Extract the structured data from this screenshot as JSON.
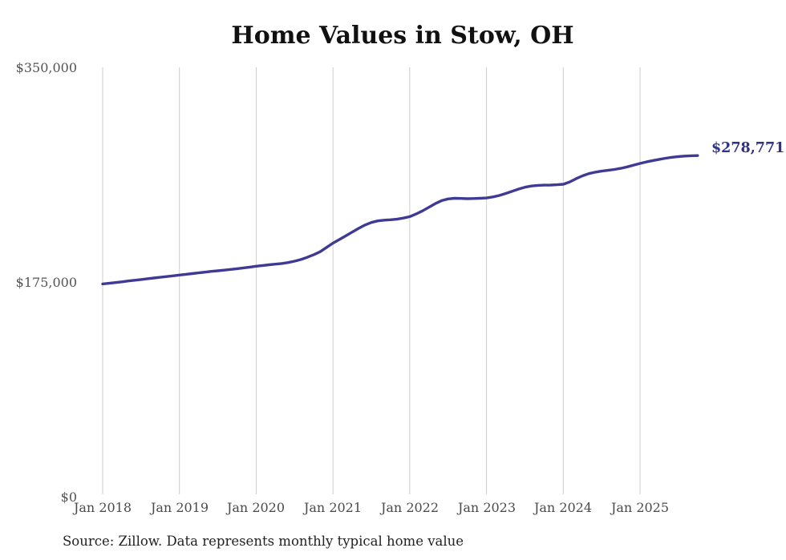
{
  "title": "Home Values in Stow, OH",
  "source": "Source: Zillow. Data represents monthly typical home value",
  "colors": {
    "line": "#3f3b94",
    "end_label": "#31318c",
    "gridline": "#cccccc",
    "axis_text": "#4f4f4f",
    "title_text": "#111111",
    "source_text": "#222222",
    "background": "#ffffff"
  },
  "chart_data": {
    "type": "line",
    "title": "Home Values in Stow, OH",
    "xlabel": "",
    "ylabel": "",
    "x_start": "2018-01",
    "x_end": "2025-10",
    "x_interval": "monthly",
    "x_tick_labels": [
      "Jan 2018",
      "Jan 2019",
      "Jan 2020",
      "Jan 2021",
      "Jan 2022",
      "Jan 2023",
      "Jan 2024",
      "Jan 2025"
    ],
    "y_tick_labels": [
      "$350,000",
      "$175,000",
      "$0"
    ],
    "ylim": [
      0,
      350000
    ],
    "grid": "vertical-only",
    "legend": "none",
    "end_label": "$278,771",
    "end_value": 278771,
    "series": [
      {
        "name": "Typical home value",
        "values": [
          174300,
          174800,
          175400,
          176000,
          176700,
          177300,
          177900,
          178500,
          179100,
          179700,
          180300,
          180900,
          181500,
          182100,
          182700,
          183300,
          183900,
          184500,
          185000,
          185500,
          186100,
          186700,
          187300,
          188000,
          188700,
          189300,
          189900,
          190400,
          190900,
          191700,
          192800,
          194200,
          196000,
          198100,
          200500,
          204000,
          207500,
          210400,
          213400,
          216500,
          219500,
          222200,
          224300,
          225600,
          226200,
          226500,
          227000,
          227900,
          229100,
          231200,
          233800,
          236700,
          239700,
          242100,
          243500,
          244000,
          243900,
          243700,
          243800,
          244000,
          244300,
          245100,
          246300,
          247900,
          249700,
          251500,
          253000,
          254000,
          254500,
          254700,
          254800,
          255000,
          255400,
          257300,
          259900,
          262300,
          264100,
          265300,
          266100,
          266800,
          267500,
          268400,
          269600,
          271000,
          272400,
          273600,
          274700,
          275700,
          276600,
          277400,
          278000,
          278400,
          278650,
          278771
        ]
      }
    ]
  }
}
